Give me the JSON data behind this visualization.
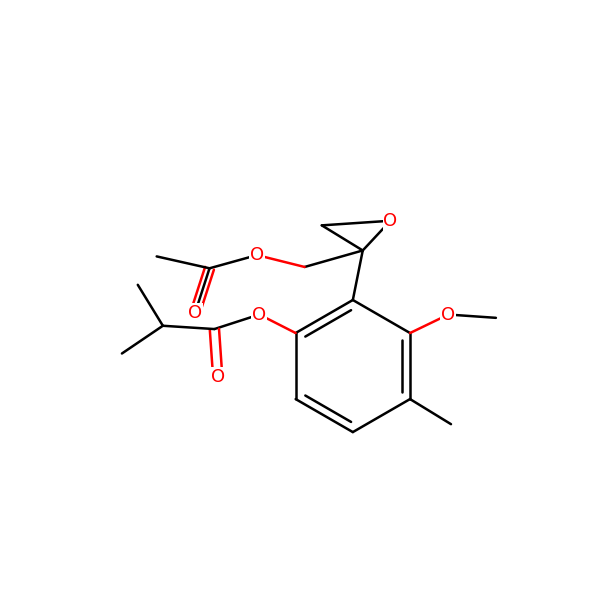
{
  "background": "#ffffff",
  "bond_color": "#000000",
  "heteroatom_color": "#ff0000",
  "bond_width": 1.8,
  "font_size": 13,
  "fig_size": [
    6.0,
    6.0
  ],
  "dpi": 100,
  "xlim": [
    0.5,
    9.5
  ],
  "ylim": [
    0.5,
    9.5
  ]
}
